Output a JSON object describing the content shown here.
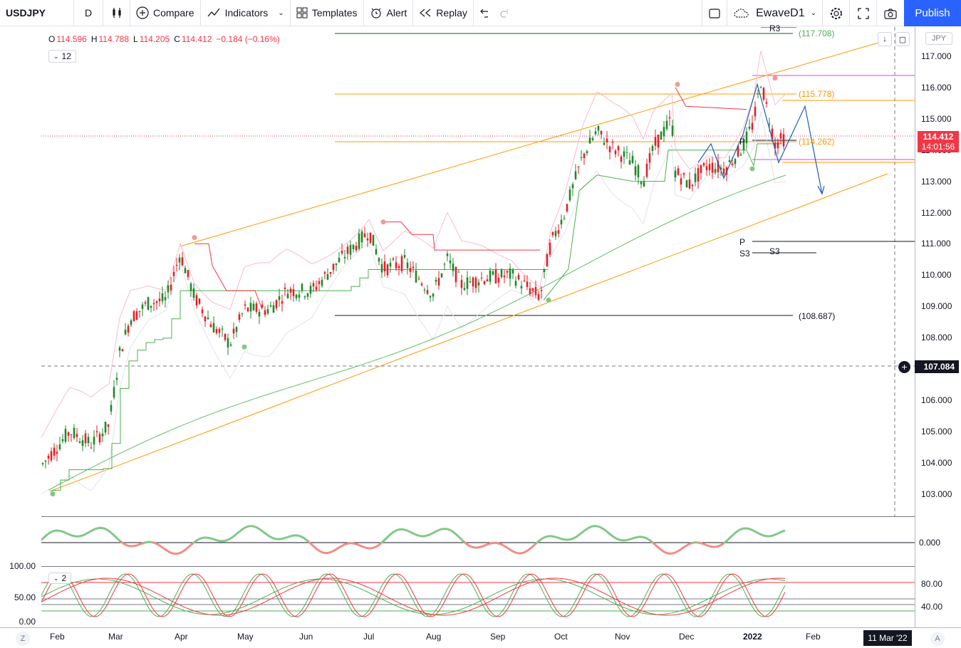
{
  "toolbar": {
    "symbol": "USDJPY",
    "interval": "D",
    "compare_label": "Compare",
    "indicators_label": "Indicators",
    "templates_label": "Templates",
    "alert_label": "Alert",
    "replay_label": "Replay",
    "layout_name": "EwaveD1",
    "publish_label": "Publish"
  },
  "legend": {
    "open_key": "O",
    "open": "114.596",
    "high_key": "H",
    "high": "114.788",
    "low_key": "L",
    "low": "114.205",
    "close_key": "C",
    "close": "114.412",
    "change": "−0.184 (−0.16%)",
    "indicator_count": "12",
    "osc_count": "2"
  },
  "price_axis": {
    "currency": "JPY",
    "ticks": [
      "117.000",
      "116.000",
      "115.000",
      "114.000",
      "113.000",
      "112.000",
      "111.000",
      "110.000",
      "109.000",
      "108.000",
      "107.000",
      "106.000",
      "105.000",
      "104.000",
      "103.000"
    ],
    "last_price": "114.412",
    "countdown": "14:01:56",
    "crosshair_price": "107.084",
    "osc1_ticks": [
      "0.000"
    ],
    "osc2_left_ticks": [
      "100.00",
      "50.00",
      "0.00"
    ],
    "osc2_right_ticks": [
      "80.00",
      "40.00"
    ]
  },
  "time_axis": {
    "labels": [
      "Feb",
      "Mar",
      "Apr",
      "May",
      "Jun",
      "Jul",
      "Aug",
      "Sep",
      "Oct",
      "Nov",
      "Dec",
      "2022",
      "Feb"
    ],
    "crosshair_date": "11 Mar '22",
    "left_button": "Z",
    "right_button": "A"
  },
  "annotations": {
    "r3": "R3",
    "r3_price": "(117.708)",
    "level_115": "(115.778)",
    "level_114": "(114.262)",
    "level_108": "(108.687)",
    "p_label": "P",
    "s3_label": "S3",
    "p_label_right": "P",
    "s3_label_right": "S3"
  },
  "colors": {
    "up": "#22ab94",
    "down": "#f23645",
    "accent": "#2962ff",
    "channel": "#ff9800"
  }
}
